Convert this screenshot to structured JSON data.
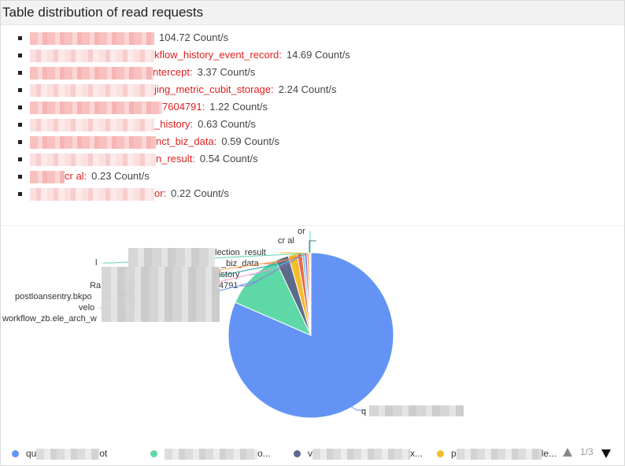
{
  "panel": {
    "title": "Table distribution of read requests"
  },
  "read_list": [
    {
      "name_tail": "",
      "value": "104.72 Count/s"
    },
    {
      "name_tail": "kflow_history_event_record:",
      "value": "14.69 Count/s"
    },
    {
      "name_tail": "ntercept:",
      "value": "3.37 Count/s"
    },
    {
      "name_tail": "jing_metric_cubit_storage:",
      "value": "2.24 Count/s"
    },
    {
      "name_tail": "7604791:",
      "value": "1.22 Count/s"
    },
    {
      "name_tail": "_history:",
      "value": "0.63 Count/s"
    },
    {
      "name_tail": "nct_biz_data:",
      "value": "0.59 Count/s"
    },
    {
      "name_tail": "n_result:",
      "value": "0.54 Count/s"
    },
    {
      "name_tail": "cr      al:",
      "value": "0.23 Count/s"
    },
    {
      "name_tail": "or:",
      "value": "0.22 Count/s"
    }
  ],
  "chart_data": {
    "type": "pie",
    "values": [
      104.72,
      14.69,
      3.37,
      2.24,
      1.22,
      0.63,
      0.59,
      0.54,
      0.23,
      0.22
    ],
    "colors": [
      "#6394f5",
      "#5fd8a8",
      "#5c6b8a",
      "#f3bd2b",
      "#e8684a",
      "#6dc8ec",
      "#9270ca",
      "#ff9d4d",
      "#269a99",
      "#ff99c3"
    ],
    "slice_labels": [
      "q",
      "",
      "",
      "",
      "4791",
      "history",
      "_biz_data",
      "lection_result",
      "cr    al",
      "or"
    ],
    "outside_labels": [
      "workflow_zb.ele_arch_w",
      "velo",
      "postloansentry.bkpo",
      "Ra",
      "l"
    ]
  },
  "legend": {
    "items": [
      {
        "prefix": "qu",
        "suffix": "ot",
        "color": "#6394f5"
      },
      {
        "prefix": "",
        "suffix": "o...",
        "color": "#5fd8a8"
      },
      {
        "prefix": "v",
        "suffix": "x...",
        "color": "#5c6b8a"
      },
      {
        "prefix": "p",
        "suffix": "le...",
        "color": "#f3bd2b"
      }
    ],
    "page": "1/3"
  }
}
